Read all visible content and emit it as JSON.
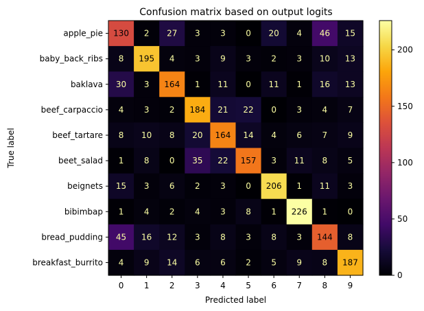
{
  "chart_data": {
    "type": "heatmap",
    "title": "Confusion matrix based on output logits",
    "xlabel": "Predicted label",
    "ylabel": "True label",
    "x_categories": [
      "0",
      "1",
      "2",
      "3",
      "4",
      "5",
      "6",
      "7",
      "8",
      "9"
    ],
    "y_categories": [
      "apple_pie",
      "baby_back_ribs",
      "baklava",
      "beef_carpaccio",
      "beef_tartare",
      "beet_salad",
      "beignets",
      "bibimbap",
      "bread_pudding",
      "breakfast_burrito"
    ],
    "values": [
      [
        130,
        2,
        27,
        3,
        3,
        0,
        20,
        4,
        46,
        15
      ],
      [
        8,
        195,
        4,
        3,
        9,
        3,
        2,
        3,
        10,
        13
      ],
      [
        30,
        3,
        164,
        1,
        11,
        0,
        11,
        1,
        16,
        13
      ],
      [
        4,
        3,
        2,
        184,
        21,
        22,
        0,
        3,
        4,
        7
      ],
      [
        8,
        10,
        8,
        20,
        164,
        14,
        4,
        6,
        7,
        9
      ],
      [
        1,
        8,
        0,
        35,
        22,
        157,
        3,
        11,
        8,
        5
      ],
      [
        15,
        3,
        6,
        2,
        3,
        0,
        206,
        1,
        11,
        3
      ],
      [
        1,
        4,
        2,
        4,
        3,
        8,
        1,
        226,
        1,
        0
      ],
      [
        45,
        16,
        12,
        3,
        8,
        3,
        8,
        3,
        144,
        8
      ],
      [
        4,
        9,
        14,
        6,
        6,
        2,
        5,
        9,
        8,
        187
      ]
    ],
    "colormap": "inferno",
    "colorbar": {
      "range": [
        0,
        226
      ],
      "ticks": [
        0,
        50,
        100,
        150,
        200
      ]
    }
  }
}
